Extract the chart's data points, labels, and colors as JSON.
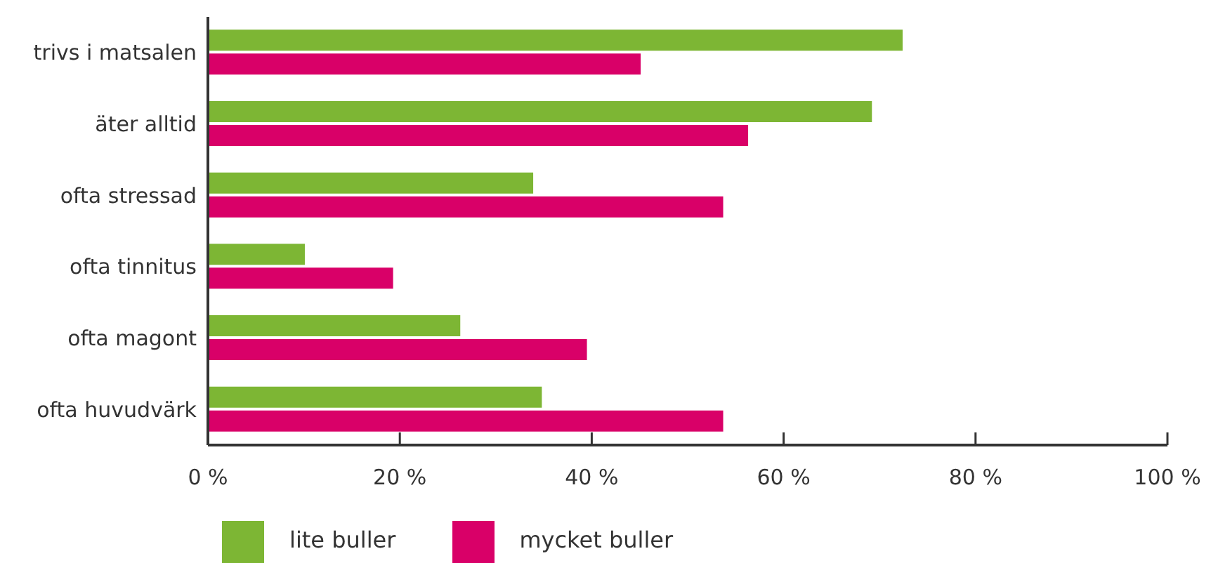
{
  "chart_data": {
    "type": "bar",
    "orientation": "horizontal",
    "categories": [
      "trivs i matsalen",
      "äter alltid",
      "ofta stressad",
      "ofta tinnitus",
      "ofta magont",
      "ofta huvudvärk"
    ],
    "series": [
      {
        "name": "lite buller",
        "color": "#7db634",
        "values": [
          72.4,
          69.2,
          33.9,
          10.1,
          26.3,
          34.8
        ]
      },
      {
        "name": "mycket buller",
        "color": "#d90068",
        "values": [
          45.1,
          56.3,
          53.7,
          19.3,
          39.5,
          53.7
        ]
      }
    ],
    "xlim": [
      0,
      100
    ],
    "xticks": [
      {
        "value": 0,
        "label": "0 %"
      },
      {
        "value": 20,
        "label": "20 %"
      },
      {
        "value": 40,
        "label": "40 %"
      },
      {
        "value": 60,
        "label": "60 %"
      },
      {
        "value": 80,
        "label": "80 %"
      },
      {
        "value": 100,
        "label": "100 %"
      }
    ],
    "grid": false,
    "legend": "bottom"
  }
}
